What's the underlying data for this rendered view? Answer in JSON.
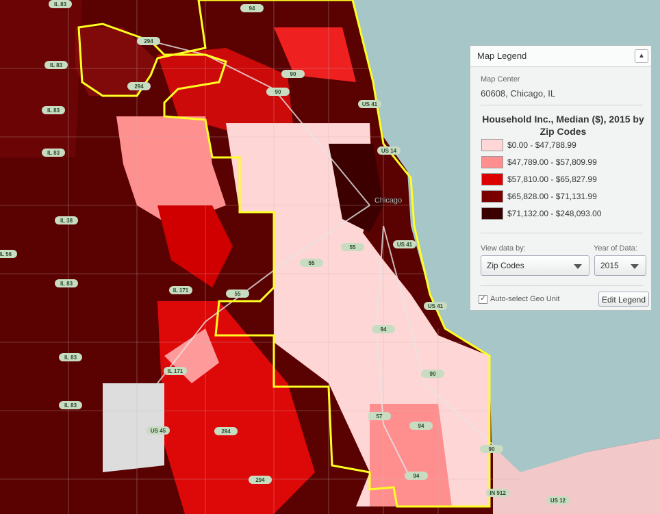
{
  "legend": {
    "title": "Map Legend",
    "map_center_label": "Map Center",
    "map_center": "60608, Chicago, IL",
    "heading": "Household Inc., Median ($), 2015 by Zip Codes",
    "classes": [
      {
        "label": "$0.00 - $47,788.99",
        "color": "#ffd7d7"
      },
      {
        "label": "$47,789.00 - $57,809.99",
        "color": "#ff8f8f"
      },
      {
        "label": "$57,810.00 - $65,827.99",
        "color": "#dd0000"
      },
      {
        "label": "$65,828.00 - $71,131.99",
        "color": "#7a0000"
      },
      {
        "label": "$71,132.00 - $248,093.00",
        "color": "#3a0000"
      }
    ],
    "view_by_label": "View data by:",
    "view_by": "Zip Codes",
    "year_label": "Year of Data:",
    "year": "2015",
    "auto_select": "Auto-select Geo Unit",
    "edit_button": "Edit Legend"
  },
  "map": {
    "city_label": "Chicago",
    "route_labels": [
      "IL 83",
      "294",
      "94",
      "IL 83",
      "IL 83",
      "294",
      "90",
      "90",
      "US 41",
      "IL 83",
      "US 14",
      "IL 38",
      "IL 56",
      "IL 83",
      "IL 171",
      "55",
      "55",
      "US 41",
      "55",
      "US 41",
      "94",
      "IL 83",
      "IL 171",
      "90",
      "IL 83",
      "US 45",
      "57",
      "94",
      "294",
      "90",
      "294",
      "94",
      "IN 912",
      "US 12"
    ]
  }
}
